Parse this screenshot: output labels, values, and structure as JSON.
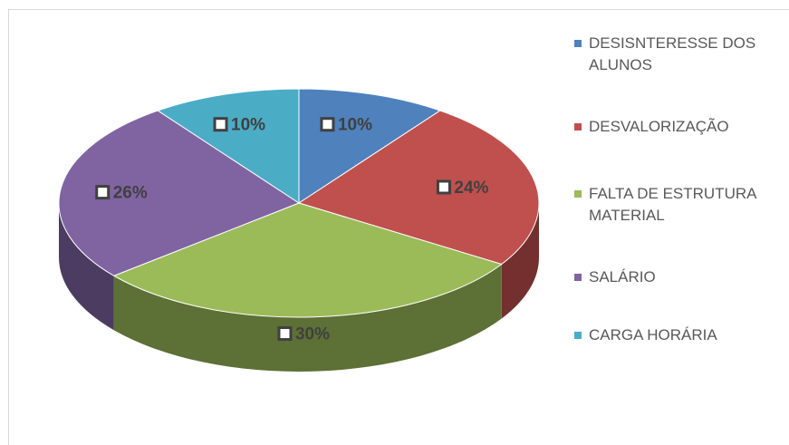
{
  "chart_data": {
    "type": "pie",
    "categories": [
      "DESISNTERESSE DOS ALUNOS",
      "DESVALORIZAÇÃO",
      "FALTA DE ESTRUTURA MATERIAL",
      "SALÁRIO",
      "CARGA HORÁRIA"
    ],
    "values": [
      10,
      24,
      30,
      26,
      10
    ],
    "value_labels": [
      "10%",
      "24%",
      "30%",
      "26%",
      "10%"
    ],
    "colors": [
      "#4f81bd",
      "#c0504d",
      "#9bbb59",
      "#8064a2",
      "#4bacc6"
    ],
    "legend": "right"
  }
}
